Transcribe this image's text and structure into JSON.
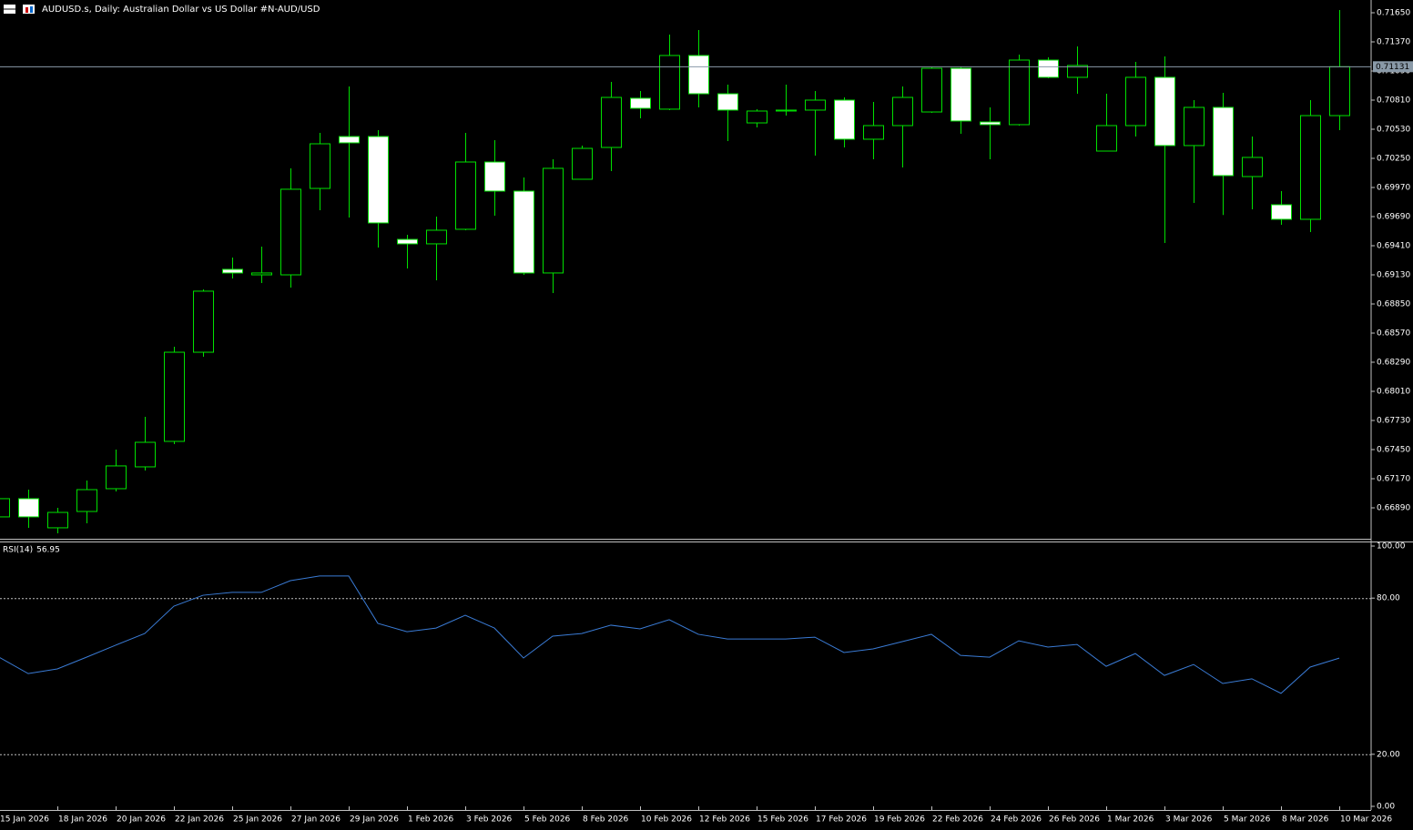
{
  "chart_data": [
    {
      "type": "candlestick",
      "title": "AUDUSD.s, Daily:  Australian Dollar vs US Dollar #N-AUD/USD",
      "categories": [
        "15 Jan 2026",
        null,
        "18 Jan 2026",
        null,
        "20 Jan 2026",
        null,
        "22 Jan 2026",
        null,
        "25 Jan 2026",
        null,
        "27 Jan 2026",
        null,
        "29 Jan 2026",
        null,
        "1 Feb 2026",
        null,
        "3 Feb 2026",
        null,
        "5 Feb 2026",
        null,
        "8 Feb 2026",
        null,
        "10 Feb 2026",
        null,
        "12 Feb 2026",
        null,
        "15 Feb 2026",
        null,
        "17 Feb 2026",
        null,
        "19 Feb 2026",
        null,
        "22 Feb 2026",
        null,
        "24 Feb 2026",
        null,
        "26 Feb 2026",
        null,
        "1 Mar 2026",
        null,
        "3 Mar 2026",
        null,
        "5 Mar 2026",
        null,
        "8 Mar 2026",
        null,
        "10 Mar 2026"
      ],
      "open": [
        0.66803,
        0.66978,
        0.66698,
        0.66855,
        0.67074,
        0.67284,
        0.67529,
        0.68386,
        0.69183,
        0.6913,
        0.6913,
        0.69961,
        0.7046,
        0.7046,
        0.69471,
        0.69428,
        0.69568,
        0.70215,
        0.69935,
        0.69148,
        0.70049,
        0.70355,
        0.70828,
        0.70723,
        0.71239,
        0.70871,
        0.70591,
        0.70705,
        0.70714,
        0.7081,
        0.70434,
        0.70565,
        0.70696,
        0.71116,
        0.706,
        0.70574,
        0.71195,
        0.71029,
        0.7032,
        0.70565,
        0.71029,
        0.70373,
        0.7074,
        0.70075,
        0.69804,
        0.69664,
        0.70661
      ],
      "high": [
        0.67004,
        0.67065,
        0.6689,
        0.67153,
        0.6745,
        0.67765,
        0.68439,
        0.6899,
        0.69296,
        0.69401,
        0.70154,
        0.70495,
        0.70941,
        0.70521,
        0.69515,
        0.6969,
        0.70495,
        0.70425,
        0.70066,
        0.70241,
        0.70373,
        0.70985,
        0.70898,
        0.7144,
        0.71484,
        0.70959,
        0.70723,
        0.70959,
        0.70898,
        0.70836,
        0.70793,
        0.70941,
        0.71125,
        0.71134,
        0.7074,
        0.71248,
        0.71221,
        0.71326,
        0.70871,
        0.71178,
        0.7123,
        0.7081,
        0.7088,
        0.7046,
        0.69935,
        0.7081,
        0.71676
      ],
      "low": [
        0.66768,
        0.66698,
        0.66645,
        0.66741,
        0.67048,
        0.67249,
        0.67503,
        0.68343,
        0.69095,
        0.69051,
        0.69008,
        0.69751,
        0.69681,
        0.69393,
        0.69191,
        0.69078,
        0.69559,
        0.69699,
        0.6913,
        0.68955,
        0.70049,
        0.70128,
        0.70635,
        0.70714,
        0.7074,
        0.70416,
        0.70548,
        0.70661,
        0.70276,
        0.70355,
        0.70241,
        0.70163,
        0.70688,
        0.70486,
        0.70241,
        0.70565,
        0.7102,
        0.70871,
        0.7032,
        0.7046,
        0.69436,
        0.69821,
        0.69705,
        0.6976,
        0.69611,
        0.69541,
        0.70521
      ],
      "close": [
        0.66978,
        0.66803,
        0.66846,
        0.67065,
        0.67293,
        0.6752,
        0.68386,
        0.68973,
        0.69148,
        0.69148,
        0.69953,
        0.7039,
        0.70399,
        0.69629,
        0.69428,
        0.69559,
        0.70215,
        0.69935,
        0.69148,
        0.70154,
        0.70346,
        0.70836,
        0.70731,
        0.71239,
        0.70871,
        0.70714,
        0.70705,
        0.70714,
        0.7081,
        0.70434,
        0.70565,
        0.70836,
        0.71116,
        0.70609,
        0.70574,
        0.71195,
        0.71029,
        0.71143,
        0.70565,
        0.71029,
        0.70373,
        0.7074,
        0.70084,
        0.70259,
        0.69664,
        0.70661,
        0.71131
      ],
      "up_color": "#000000",
      "down_color": "#ffffff",
      "outline_color": "#00e000",
      "ylim": [
        0.665925,
        0.717725
      ],
      "yticks": [
        {
          "value": 0.7165,
          "label": "0.71650"
        },
        {
          "value": 0.7137,
          "label": "0.71370"
        },
        {
          "value": 0.7109,
          "label": "0.71090"
        },
        {
          "value": 0.7081,
          "label": "0.70810"
        },
        {
          "value": 0.7053,
          "label": "0.70530"
        },
        {
          "value": 0.7025,
          "label": "0.70250"
        },
        {
          "value": 0.6997,
          "label": "0.69970"
        },
        {
          "value": 0.6969,
          "label": "0.69690"
        },
        {
          "value": 0.6941,
          "label": "0.69410"
        },
        {
          "value": 0.6913,
          "label": "0.69130"
        },
        {
          "value": 0.6885,
          "label": "0.68850"
        },
        {
          "value": 0.6857,
          "label": "0.68570"
        },
        {
          "value": 0.6829,
          "label": "0.68290"
        },
        {
          "value": 0.6801,
          "label": "0.68010"
        },
        {
          "value": 0.6773,
          "label": "0.67730"
        },
        {
          "value": 0.6745,
          "label": "0.67450"
        },
        {
          "value": 0.6717,
          "label": "0.67170"
        },
        {
          "value": 0.6689,
          "label": "0.66890"
        }
      ],
      "bid_line": {
        "value": 0.71131,
        "label": "0.71131"
      }
    },
    {
      "type": "line",
      "title": "RSI(14)",
      "values": [
        57.3,
        51,
        52.8,
        57.3,
        61.9,
        66.4,
        76.9,
        81.1,
        82.2,
        82.2,
        86.7,
        88.5,
        88.5,
        70.3,
        67.1,
        68.5,
        73.4,
        68.5,
        57.0,
        65.4,
        66.4,
        69.6,
        68.2,
        71.7,
        66.1,
        64.3,
        64.3,
        64.3,
        65.0,
        59.1,
        60.5,
        63.3,
        66.1,
        58.0,
        57.3,
        63.6,
        61.2,
        62.2,
        53.8,
        58.7,
        50.3,
        54.5,
        47.2,
        49.0,
        43.4,
        53.5,
        56.95
      ],
      "color": "#3a7bd5",
      "ylim": [
        0,
        100
      ],
      "yticks": [
        {
          "value": 100,
          "label": "100.00"
        },
        {
          "value": 80,
          "label": "80.00"
        },
        {
          "value": 20,
          "label": "20.00"
        },
        {
          "value": 0,
          "label": "0.00"
        }
      ],
      "levels": [
        80,
        20
      ]
    }
  ]
}
